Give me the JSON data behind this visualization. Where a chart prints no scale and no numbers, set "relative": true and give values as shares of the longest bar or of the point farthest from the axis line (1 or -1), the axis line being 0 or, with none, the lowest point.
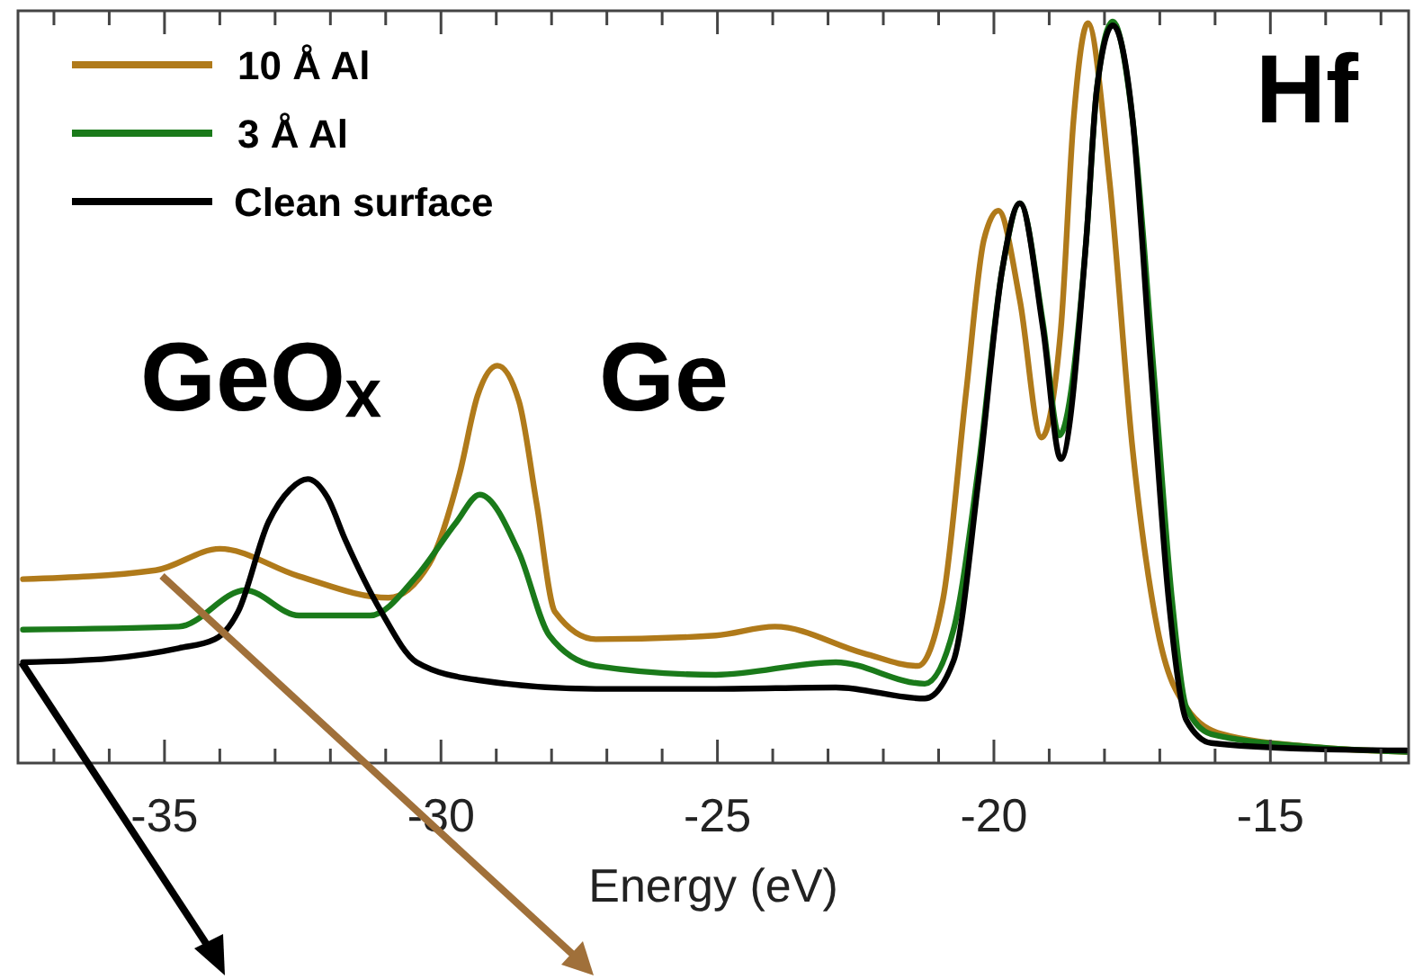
{
  "chart_data": {
    "type": "line",
    "relative": true,
    "xlabel": "Energy (eV)",
    "xlim": [
      -37.65,
      -12.5
    ],
    "xticks": [
      {
        "value": -37,
        "label": null
      },
      {
        "value": -36,
        "label": null
      },
      -35,
      {
        "value": -34,
        "label": null
      },
      {
        "value": -33,
        "label": null
      },
      {
        "value": -32,
        "label": null
      },
      {
        "value": -31,
        "label": null
      },
      -30,
      {
        "value": -29,
        "label": null
      },
      {
        "value": -28,
        "label": null
      },
      {
        "value": -27,
        "label": null
      },
      {
        "value": -26,
        "label": null
      },
      -25,
      {
        "value": -24,
        "label": null
      },
      {
        "value": -23,
        "label": null
      },
      {
        "value": -22,
        "label": null
      },
      {
        "value": -21,
        "label": null
      },
      -20,
      {
        "value": -19,
        "label": null
      },
      {
        "value": -18,
        "label": null
      },
      {
        "value": -17,
        "label": null
      },
      {
        "value": -16,
        "label": null
      },
      -15,
      {
        "value": -14,
        "label": null
      },
      {
        "value": -13,
        "label": null
      }
    ],
    "tick_labels": "x",
    "legend": "top left",
    "line_style": "solid",
    "annotations": [
      "GeOₓ",
      "Ge",
      "Hf"
    ],
    "series": [
      {
        "name": "10 Å Al",
        "color": "#b07a1a",
        "x": [
          -37.56,
          -35.16,
          -34.0,
          -32.57,
          -30.95,
          -30.21,
          -29.66,
          -29.34,
          -28.98,
          -28.59,
          -28.27,
          -27.94,
          -27.2,
          -25.03,
          -23.96,
          -22.35,
          -21.38,
          -20.92,
          -20.5,
          -20.18,
          -19.92,
          -19.53,
          -19.14,
          -18.79,
          -18.56,
          -18.3,
          -17.91,
          -17.49,
          -17.04,
          -16.52,
          -15.87,
          -14.26,
          -12.54
        ],
        "values": [
          0.248,
          0.26,
          0.289,
          0.252,
          0.223,
          0.269,
          0.391,
          0.495,
          0.536,
          0.488,
          0.35,
          0.204,
          0.167,
          0.172,
          0.184,
          0.148,
          0.131,
          0.221,
          0.502,
          0.706,
          0.745,
          0.624,
          0.439,
          0.585,
          0.867,
          0.998,
          0.786,
          0.422,
          0.18,
          0.075,
          0.039,
          0.022,
          0.015
        ]
      },
      {
        "name": "3 Å Al",
        "color": "#1a7a1a",
        "x": [
          -37.56,
          -34.74,
          -33.54,
          -32.57,
          -31.28,
          -30.44,
          -29.72,
          -29.3,
          -28.59,
          -28.04,
          -27.2,
          -25.03,
          -22.86,
          -21.25,
          -20.73,
          -20.28,
          -19.85,
          -19.53,
          -19.11,
          -18.82,
          -18.33,
          -18.14,
          -17.85,
          -17.49,
          -17.1,
          -16.78,
          -16.52,
          -16.07,
          -14.26,
          -12.54
        ],
        "values": [
          0.18,
          0.184,
          0.233,
          0.199,
          0.199,
          0.252,
          0.325,
          0.362,
          0.284,
          0.172,
          0.131,
          0.119,
          0.136,
          0.107,
          0.18,
          0.398,
          0.665,
          0.755,
          0.592,
          0.442,
          0.706,
          0.908,
          1,
          0.867,
          0.519,
          0.221,
          0.075,
          0.039,
          0.022,
          0.015
        ]
      },
      {
        "name": "Clean surface",
        "color": "#000000",
        "x": [
          -37.56,
          -36.0,
          -34.74,
          -34.09,
          -33.67,
          -33.12,
          -32.73,
          -32.41,
          -32.06,
          -31.73,
          -31.08,
          -30.44,
          -29.34,
          -27.2,
          -25.03,
          -22.86,
          -21.25,
          -20.73,
          -20.28,
          -19.85,
          -19.53,
          -19.11,
          -18.79,
          -18.33,
          -18.14,
          -17.85,
          -17.49,
          -17.17,
          -16.84,
          -16.52,
          -16.07,
          -14.26,
          -12.54
        ],
        "values": [
          0.136,
          0.141,
          0.155,
          0.167,
          0.204,
          0.325,
          0.369,
          0.383,
          0.359,
          0.301,
          0.204,
          0.136,
          0.112,
          0.1,
          0.1,
          0.102,
          0.087,
          0.138,
          0.381,
          0.665,
          0.755,
          0.585,
          0.41,
          0.706,
          0.908,
          0.995,
          0.867,
          0.544,
          0.221,
          0.058,
          0.027,
          0.019,
          0.017
        ]
      }
    ]
  }
}
